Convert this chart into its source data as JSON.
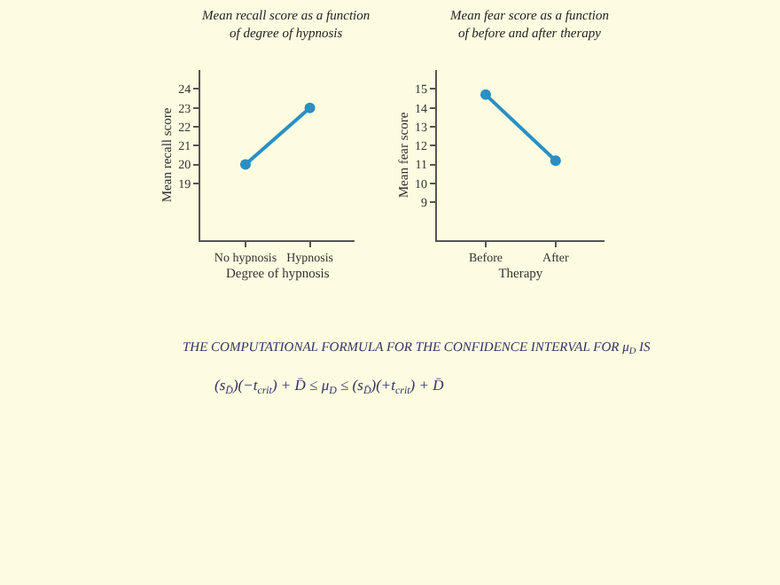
{
  "chart_data": [
    {
      "type": "line",
      "title": "Mean recall score as a function\nof degree of hypnosis",
      "xlabel": "Degree of hypnosis",
      "ylabel": "Mean recall score",
      "categories": [
        "No hypnosis",
        "Hypnosis"
      ],
      "series": [
        {
          "color": "#2a8fc4",
          "values": [
            20,
            23
          ]
        }
      ],
      "ylim": [
        16,
        25
      ],
      "yticks": [
        19,
        20,
        21,
        22,
        23,
        24
      ],
      "marker": "circle",
      "line_style": "solid"
    },
    {
      "type": "line",
      "title": "Mean fear score as a function\nof before and after therapy",
      "xlabel": "Therapy",
      "ylabel": "Mean fear score",
      "categories": [
        "Before",
        "After"
      ],
      "series": [
        {
          "color": "#2a8fc4",
          "values": [
            14.7,
            11.2
          ]
        }
      ],
      "ylim": [
        7,
        16
      ],
      "yticks": [
        9,
        10,
        11,
        12,
        13,
        14,
        15
      ],
      "marker": "circle",
      "line_style": "solid",
      "annotations": [
        "THE COMPUTATIONAL FORMULA FOR THE CONFIDENCE INTERVAL FOR μ$_{D}$ IS",
        "(s$_{D̄}$)(−t$_{crit}$) + D̄ ≤ μ$_{D}$ ≤ (s$_{D̄}$)(+t$_{crit}$) + D̄"
      ]
    }
  ]
}
